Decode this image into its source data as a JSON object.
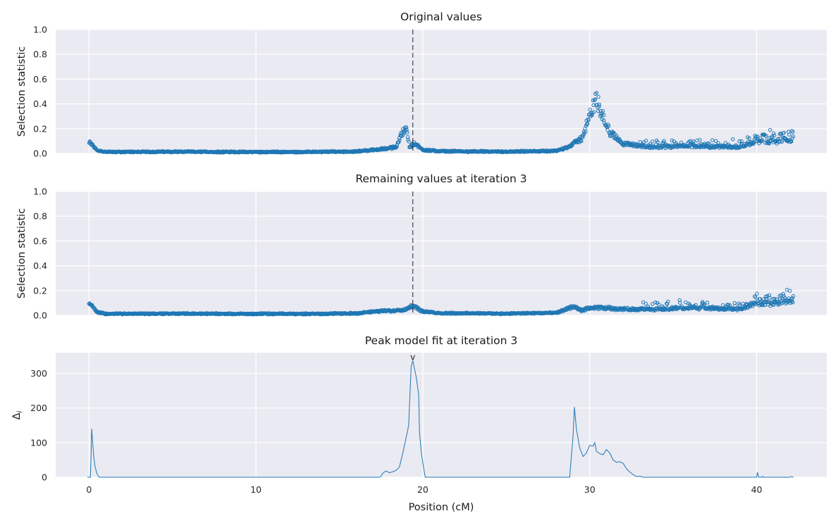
{
  "chart_data": [
    {
      "type": "scatter",
      "title": "Original values",
      "ylabel": "Selection statistic",
      "xlabel": "",
      "xlim": [
        -2,
        44.2
      ],
      "ylim": [
        0,
        1.0
      ],
      "yticks": [
        "0.0",
        "0.2",
        "0.4",
        "0.6",
        "0.8",
        "1.0"
      ],
      "xticks": [
        "0",
        "10",
        "20",
        "30",
        "40"
      ],
      "grid": true,
      "marker": "open-circle",
      "series_color": "#1f77b4",
      "vline": {
        "x": 19.4,
        "style": "dashed"
      },
      "x_range": [
        0.0,
        42.2
      ],
      "profile": [
        {
          "x": 0.0,
          "y": 0.09
        },
        {
          "x": 0.2,
          "y": 0.07
        },
        {
          "x": 0.5,
          "y": 0.025
        },
        {
          "x": 1.0,
          "y": 0.012
        },
        {
          "x": 5.0,
          "y": 0.014
        },
        {
          "x": 9.0,
          "y": 0.012
        },
        {
          "x": 13.0,
          "y": 0.012
        },
        {
          "x": 16.0,
          "y": 0.016
        },
        {
          "x": 17.5,
          "y": 0.035
        },
        {
          "x": 18.4,
          "y": 0.05
        },
        {
          "x": 18.8,
          "y": 0.18
        },
        {
          "x": 19.0,
          "y": 0.22
        },
        {
          "x": 19.2,
          "y": 0.05
        },
        {
          "x": 19.5,
          "y": 0.08
        },
        {
          "x": 20.0,
          "y": 0.03
        },
        {
          "x": 21.0,
          "y": 0.018
        },
        {
          "x": 25.0,
          "y": 0.014
        },
        {
          "x": 28.0,
          "y": 0.02
        },
        {
          "x": 28.8,
          "y": 0.06
        },
        {
          "x": 29.5,
          "y": 0.12
        },
        {
          "x": 30.0,
          "y": 0.3
        },
        {
          "x": 30.4,
          "y": 0.44
        },
        {
          "x": 30.8,
          "y": 0.3
        },
        {
          "x": 31.2,
          "y": 0.17
        },
        {
          "x": 32.0,
          "y": 0.08
        },
        {
          "x": 33.5,
          "y": 0.05
        },
        {
          "x": 36.0,
          "y": 0.06
        },
        {
          "x": 39.0,
          "y": 0.05
        },
        {
          "x": 40.0,
          "y": 0.1
        },
        {
          "x": 41.0,
          "y": 0.09
        },
        {
          "x": 42.2,
          "y": 0.12
        }
      ]
    },
    {
      "type": "scatter",
      "title": "Remaining values at iteration 3",
      "ylabel": "Selection statistic",
      "xlabel": "",
      "xlim": [
        -2,
        44.2
      ],
      "ylim": [
        0,
        1.0
      ],
      "yticks": [
        "0.0",
        "0.2",
        "0.4",
        "0.6",
        "0.8",
        "1.0"
      ],
      "xticks": [
        "0",
        "10",
        "20",
        "30",
        "40"
      ],
      "grid": true,
      "marker": "open-circle",
      "series_color": "#1f77b4",
      "vline": {
        "x": 19.4,
        "style": "dashed"
      },
      "x_range": [
        0.0,
        42.2
      ],
      "profile": [
        {
          "x": 0.0,
          "y": 0.09
        },
        {
          "x": 0.2,
          "y": 0.07
        },
        {
          "x": 0.5,
          "y": 0.025
        },
        {
          "x": 1.0,
          "y": 0.012
        },
        {
          "x": 5.0,
          "y": 0.014
        },
        {
          "x": 9.0,
          "y": 0.012
        },
        {
          "x": 13.0,
          "y": 0.012
        },
        {
          "x": 16.0,
          "y": 0.016
        },
        {
          "x": 17.5,
          "y": 0.035
        },
        {
          "x": 18.4,
          "y": 0.04
        },
        {
          "x": 19.0,
          "y": 0.05
        },
        {
          "x": 19.4,
          "y": 0.08
        },
        {
          "x": 20.0,
          "y": 0.03
        },
        {
          "x": 21.0,
          "y": 0.018
        },
        {
          "x": 25.0,
          "y": 0.014
        },
        {
          "x": 28.0,
          "y": 0.02
        },
        {
          "x": 29.0,
          "y": 0.07
        },
        {
          "x": 29.5,
          "y": 0.04
        },
        {
          "x": 30.0,
          "y": 0.06
        },
        {
          "x": 31.0,
          "y": 0.06
        },
        {
          "x": 32.0,
          "y": 0.05
        },
        {
          "x": 34.0,
          "y": 0.05
        },
        {
          "x": 36.0,
          "y": 0.06
        },
        {
          "x": 39.0,
          "y": 0.05
        },
        {
          "x": 40.0,
          "y": 0.1
        },
        {
          "x": 41.0,
          "y": 0.09
        },
        {
          "x": 42.2,
          "y": 0.12
        }
      ]
    },
    {
      "type": "line",
      "title": "Peak model fit at iteration 3",
      "ylabel": "Δ_i",
      "xlabel": "Position (cM)",
      "xlim": [
        -2,
        44.2
      ],
      "ylim": [
        0,
        360
      ],
      "yticks": [
        "0",
        "100",
        "200",
        "300"
      ],
      "xticks": [
        "0",
        "10",
        "20",
        "30",
        "40"
      ],
      "grid": true,
      "series_color": "#1f77b4",
      "peak_marker": {
        "x": 19.4,
        "y": 347,
        "label": "v"
      },
      "series": [
        {
          "points": [
            {
              "x": -0.1,
              "y": 0
            },
            {
              "x": 0.08,
              "y": 0
            },
            {
              "x": 0.12,
              "y": 60
            },
            {
              "x": 0.16,
              "y": 140
            },
            {
              "x": 0.2,
              "y": 110
            },
            {
              "x": 0.28,
              "y": 60
            },
            {
              "x": 0.36,
              "y": 30
            },
            {
              "x": 0.48,
              "y": 10
            },
            {
              "x": 0.6,
              "y": 0
            },
            {
              "x": 17.4,
              "y": 0
            },
            {
              "x": 17.5,
              "y": 3
            },
            {
              "x": 17.6,
              "y": 12
            },
            {
              "x": 17.8,
              "y": 18
            },
            {
              "x": 18.0,
              "y": 13
            },
            {
              "x": 18.2,
              "y": 16
            },
            {
              "x": 18.4,
              "y": 20
            },
            {
              "x": 18.6,
              "y": 30
            },
            {
              "x": 18.8,
              "y": 70
            },
            {
              "x": 19.0,
              "y": 115
            },
            {
              "x": 19.15,
              "y": 150
            },
            {
              "x": 19.3,
              "y": 320
            },
            {
              "x": 19.4,
              "y": 337
            },
            {
              "x": 19.6,
              "y": 290
            },
            {
              "x": 19.75,
              "y": 240
            },
            {
              "x": 19.8,
              "y": 130
            },
            {
              "x": 19.9,
              "y": 75
            },
            {
              "x": 20.0,
              "y": 40
            },
            {
              "x": 20.1,
              "y": 12
            },
            {
              "x": 20.15,
              "y": 0
            },
            {
              "x": 28.8,
              "y": 0
            },
            {
              "x": 28.9,
              "y": 60
            },
            {
              "x": 29.0,
              "y": 120
            },
            {
              "x": 29.08,
              "y": 203
            },
            {
              "x": 29.2,
              "y": 140
            },
            {
              "x": 29.4,
              "y": 85
            },
            {
              "x": 29.6,
              "y": 60
            },
            {
              "x": 29.8,
              "y": 70
            },
            {
              "x": 30.0,
              "y": 92
            },
            {
              "x": 30.2,
              "y": 90
            },
            {
              "x": 30.3,
              "y": 100
            },
            {
              "x": 30.4,
              "y": 75
            },
            {
              "x": 30.6,
              "y": 68
            },
            {
              "x": 30.8,
              "y": 65
            },
            {
              "x": 31.0,
              "y": 80
            },
            {
              "x": 31.2,
              "y": 70
            },
            {
              "x": 31.4,
              "y": 50
            },
            {
              "x": 31.6,
              "y": 43
            },
            {
              "x": 31.8,
              "y": 45
            },
            {
              "x": 32.0,
              "y": 40
            },
            {
              "x": 32.2,
              "y": 25
            },
            {
              "x": 32.4,
              "y": 15
            },
            {
              "x": 32.6,
              "y": 8
            },
            {
              "x": 32.8,
              "y": 2
            },
            {
              "x": 33.0,
              "y": 3
            },
            {
              "x": 33.2,
              "y": 0
            },
            {
              "x": 40.0,
              "y": 0
            },
            {
              "x": 40.05,
              "y": 14
            },
            {
              "x": 40.12,
              "y": 0
            },
            {
              "x": 40.3,
              "y": 0
            },
            {
              "x": 40.35,
              "y": 3
            },
            {
              "x": 40.4,
              "y": 0
            },
            {
              "x": 42.0,
              "y": 0
            },
            {
              "x": 42.05,
              "y": 2
            },
            {
              "x": 42.15,
              "y": 1
            },
            {
              "x": 42.2,
              "y": 0
            }
          ]
        }
      ]
    }
  ]
}
